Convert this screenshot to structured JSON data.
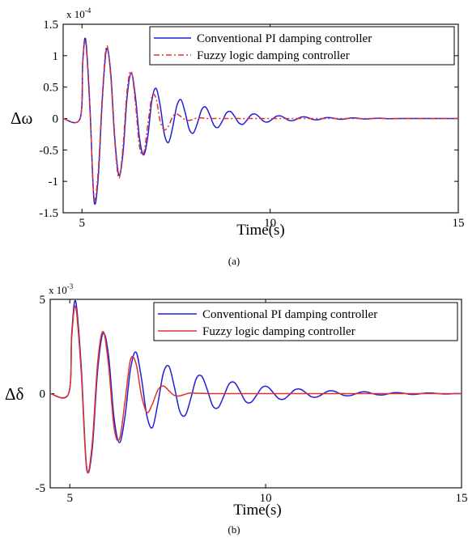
{
  "chart_data": [
    {
      "type": "line",
      "panel_label": "(a)",
      "ylabel": "Δω",
      "xlabel": "Time(s)",
      "y_multiplier": {
        "base": "x 10",
        "exponent": "-4"
      },
      "xlim": [
        4.5,
        15
      ],
      "ylim": [
        -1.5,
        1.5
      ],
      "x_ticks": [
        "5",
        "10",
        "15"
      ],
      "y_ticks": [
        "1.5",
        "1",
        "0.5",
        "0",
        "-0.5",
        "-1",
        "-1.5"
      ],
      "legend_position": "top-right",
      "series": [
        {
          "name": "Conventional PI damping controller",
          "color": "#1f1fd6",
          "dash": "solid",
          "x": [
            4.5,
            4.95,
            5.02,
            5.1,
            5.21,
            5.32,
            5.43,
            5.54,
            5.65,
            5.76,
            5.87,
            5.98,
            6.09,
            6.2,
            6.31,
            6.42,
            6.53,
            6.64,
            6.75,
            6.86,
            6.97,
            7.08,
            7.19,
            7.3,
            7.41,
            7.52,
            7.63,
            7.74,
            7.85,
            7.96,
            8.07,
            8.18,
            8.29,
            8.4,
            8.51,
            8.62,
            8.73,
            8.84,
            8.95,
            9.06,
            9.17,
            9.28,
            9.39,
            9.5,
            9.61,
            9.72,
            9.83,
            9.94,
            10.05,
            10.16,
            10.27,
            10.38,
            10.49,
            10.6,
            10.71,
            10.82,
            10.93,
            11.04,
            11.15,
            11.26,
            11.37,
            11.48,
            11.59,
            11.7,
            11.81,
            11.92,
            12.03,
            12.14,
            12.25,
            12.36,
            12.47,
            12.58,
            12.69,
            12.8,
            12.91,
            13.02,
            13.13,
            13.5,
            14.0,
            15.0
          ],
          "y": [
            0,
            0,
            0.9,
            1.25,
            0.2,
            -1.3,
            -0.95,
            0.3,
            1.1,
            0.75,
            -0.3,
            -0.9,
            -0.55,
            0.35,
            0.72,
            0.35,
            -0.32,
            -0.58,
            -0.28,
            0.3,
            0.48,
            0.2,
            -0.25,
            -0.38,
            -0.14,
            0.2,
            0.3,
            0.1,
            -0.17,
            -0.23,
            -0.07,
            0.14,
            0.18,
            0.05,
            -0.11,
            -0.14,
            -0.04,
            0.09,
            0.11,
            0.03,
            -0.07,
            -0.09,
            -0.02,
            0.06,
            0.07,
            0.02,
            -0.045,
            -0.055,
            -0.015,
            0.035,
            0.042,
            0.012,
            -0.028,
            -0.033,
            -0.009,
            0.022,
            0.026,
            0.007,
            -0.017,
            -0.02,
            -0.005,
            0.013,
            0.015,
            0.004,
            -0.01,
            -0.012,
            -0.003,
            0.008,
            0.009,
            0.002,
            -0.006,
            -0.007,
            -0.002,
            0.004,
            0.005,
            0.001,
            -0.003,
            0,
            0,
            0
          ]
        },
        {
          "name": "Fuzzy logic damping controller",
          "color": "#e0322c",
          "dash": "dashdot",
          "x": [
            4.5,
            4.95,
            5.02,
            5.1,
            5.21,
            5.32,
            5.43,
            5.54,
            5.65,
            5.76,
            5.87,
            5.98,
            6.09,
            6.2,
            6.31,
            6.42,
            6.53,
            6.64,
            6.75,
            6.86,
            6.97,
            7.08,
            7.19,
            7.3,
            7.41,
            7.52,
            7.63,
            7.74,
            7.85,
            7.96,
            8.07,
            8.18,
            8.29,
            8.4,
            8.6,
            9.0,
            10.0,
            15.0
          ],
          "y": [
            0,
            0,
            0.9,
            1.2,
            0.15,
            -1.25,
            -0.85,
            0.35,
            1.15,
            0.7,
            -0.35,
            -0.95,
            -0.45,
            0.45,
            0.75,
            0.25,
            -0.45,
            -0.55,
            -0.1,
            0.35,
            0.32,
            -0.05,
            -0.18,
            -0.12,
            0.03,
            0.07,
            0.03,
            -0.02,
            -0.03,
            -0.01,
            0.01,
            0.01,
            0,
            0,
            0,
            0,
            0,
            0
          ]
        }
      ]
    },
    {
      "type": "line",
      "panel_label": "(b)",
      "ylabel": "Δδ",
      "xlabel": "Time(s)",
      "y_multiplier": {
        "base": "x 10",
        "exponent": "-3"
      },
      "xlim": [
        4.5,
        15
      ],
      "ylim": [
        -5,
        5
      ],
      "x_ticks": [
        "5",
        "10",
        "15"
      ],
      "y_ticks": [
        "5",
        "0",
        "-5"
      ],
      "legend_position": "top-right",
      "series": [
        {
          "name": "Conventional PI damping controller",
          "color": "#1f1fd6",
          "dash": "solid",
          "x": [
            4.5,
            4.97,
            5.05,
            5.15,
            5.29,
            5.43,
            5.57,
            5.71,
            5.85,
            5.99,
            6.13,
            6.27,
            6.41,
            6.55,
            6.69,
            6.83,
            6.97,
            7.11,
            7.25,
            7.39,
            7.53,
            7.67,
            7.81,
            7.95,
            8.09,
            8.23,
            8.37,
            8.51,
            8.65,
            8.79,
            8.93,
            9.07,
            9.21,
            9.35,
            9.49,
            9.63,
            9.77,
            9.91,
            10.05,
            10.19,
            10.33,
            10.47,
            10.61,
            10.75,
            10.89,
            11.03,
            11.17,
            11.31,
            11.45,
            11.59,
            11.73,
            11.87,
            12.01,
            12.15,
            12.29,
            12.43,
            12.57,
            12.71,
            12.85,
            12.99,
            13.13,
            13.27,
            13.41,
            13.55,
            13.69,
            13.83,
            13.97,
            14.11,
            14.25,
            14.39,
            14.53,
            14.67,
            14.81,
            15.0
          ],
          "y": [
            0,
            0,
            3.2,
            4.9,
            1.5,
            -3.9,
            -3.0,
            1.2,
            3.2,
            2.0,
            -1.3,
            -2.6,
            -1.2,
            1.3,
            2.2,
            0.8,
            -1.2,
            -1.8,
            -0.5,
            1.1,
            1.45,
            0.35,
            -0.95,
            -1.15,
            -0.25,
            0.8,
            0.92,
            0.2,
            -0.65,
            -0.74,
            -0.14,
            0.52,
            0.58,
            0.1,
            -0.42,
            -0.46,
            -0.08,
            0.33,
            0.36,
            0.06,
            -0.26,
            -0.29,
            -0.05,
            0.21,
            0.23,
            0.04,
            -0.17,
            -0.18,
            -0.03,
            0.13,
            0.14,
            0.02,
            -0.1,
            -0.11,
            -0.02,
            0.08,
            0.09,
            0.01,
            -0.06,
            -0.07,
            -0.01,
            0.05,
            0.05,
            0.01,
            -0.04,
            -0.04,
            0,
            0.03,
            0.03,
            0,
            -0.02,
            -0.02,
            0,
            0
          ]
        },
        {
          "name": "Fuzzy logic damping controller",
          "color": "#e0322c",
          "dash": "dashdot",
          "x": [
            4.5,
            4.97,
            5.05,
            5.15,
            5.29,
            5.43,
            5.57,
            5.71,
            5.85,
            5.99,
            6.13,
            6.27,
            6.41,
            6.55,
            6.69,
            6.83,
            6.97,
            7.11,
            7.25,
            7.39,
            7.53,
            7.67,
            7.81,
            7.95,
            8.09,
            8.23,
            8.6,
            9.0,
            10.0,
            15.0
          ],
          "y": [
            0,
            0,
            3.0,
            4.6,
            1.2,
            -4.0,
            -2.7,
            1.6,
            3.3,
            1.5,
            -1.8,
            -2.4,
            -0.4,
            1.8,
            1.6,
            -0.1,
            -1.0,
            -0.55,
            0.2,
            0.4,
            0.15,
            -0.1,
            -0.12,
            -0.03,
            0.03,
            0.02,
            0,
            0,
            0,
            0
          ]
        }
      ]
    }
  ]
}
